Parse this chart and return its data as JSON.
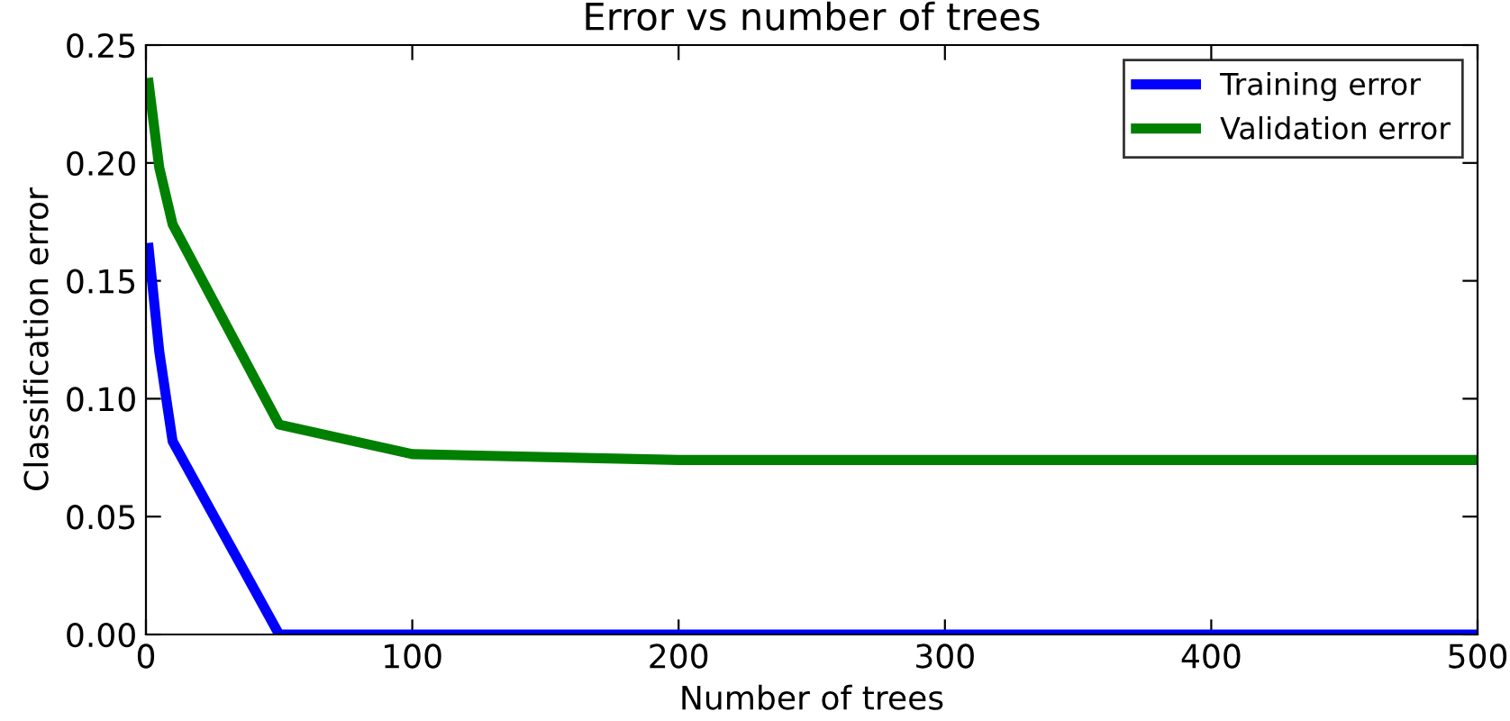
{
  "chart_data": {
    "type": "line",
    "title": "Error vs number of trees",
    "xlabel": "Number of trees",
    "ylabel": "Classification error",
    "x": [
      1,
      5,
      10,
      50,
      100,
      200,
      500
    ],
    "series": [
      {
        "name": "Training error",
        "color": "#0000ff",
        "values": [
          0.164,
          0.12,
          0.082,
          0.0,
          0.0,
          0.0,
          0.0
        ]
      },
      {
        "name": "Validation error",
        "color": "#008000",
        "values": [
          0.234,
          0.198,
          0.174,
          0.089,
          0.0765,
          0.074,
          0.074
        ]
      }
    ],
    "xlim": [
      0,
      500
    ],
    "xticks": [
      0,
      100,
      200,
      300,
      400,
      500
    ],
    "ylim": [
      0,
      0.25
    ],
    "yticks": [
      {
        "value": 0,
        "label": "0.00"
      },
      {
        "value": 0.05,
        "label": "0.05"
      },
      {
        "value": 0.1,
        "label": "0.10"
      },
      {
        "value": 0.15,
        "label": "0.15"
      },
      {
        "value": 0.2,
        "label": "0.20"
      },
      {
        "value": 0.25,
        "label": "0.25"
      }
    ],
    "grid": false,
    "legend": "top right",
    "marker": "none",
    "line_style": "solid"
  }
}
